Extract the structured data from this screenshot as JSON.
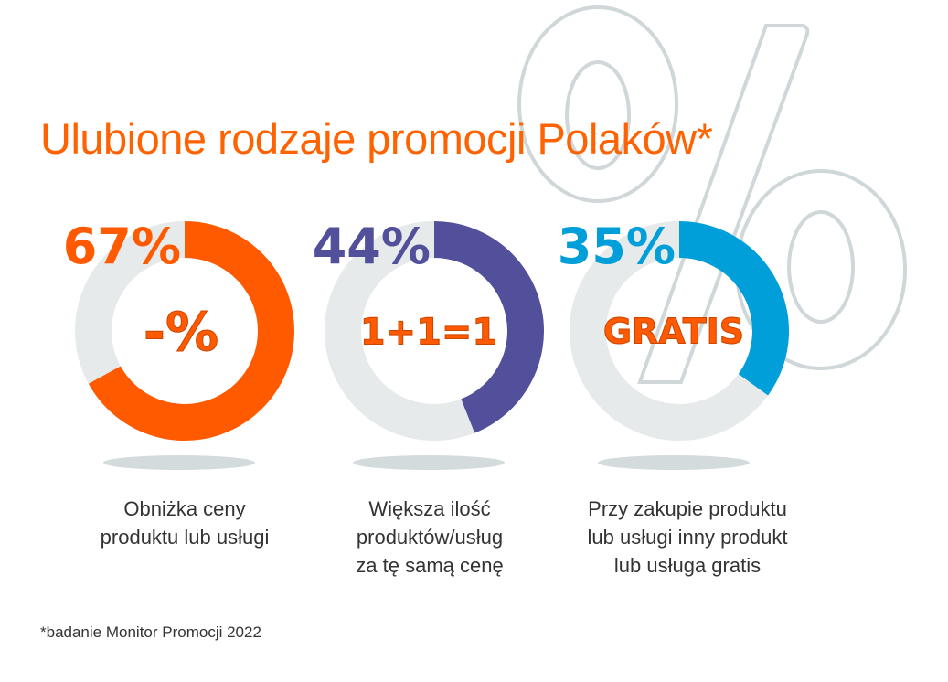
{
  "title": "Ulubione rodzaje promocji Polaków*",
  "footnote": "*badanie Monitor Promocji 2022",
  "colors": {
    "orange": "#ff5a00",
    "purple": "#52509a",
    "blue": "#009fda",
    "track": "#e6eaeb",
    "shadow": "#d4dbdc",
    "outline": "#cfd7d9"
  },
  "decoration": {
    "background_icon": "percent-outline-icon"
  },
  "chart_data": {
    "type": "donut",
    "title": "Ulubione rodzaje promocji Polaków*",
    "ylim": [
      0,
      100
    ],
    "items": [
      {
        "value": 67,
        "value_label": "67%",
        "center_text": "-%",
        "label": [
          "Obniżka ceny",
          "produktu lub usługi"
        ],
        "color": "#ff5a00"
      },
      {
        "value": 44,
        "value_label": "44%",
        "center_text": "1+1=1",
        "label": [
          "Większa ilość",
          "produktów/usług",
          "za tę samą cenę"
        ],
        "color": "#52509a"
      },
      {
        "value": 35,
        "value_label": "35%",
        "center_text": "GRATIS",
        "label": [
          "Przy zakupie produktu",
          "lub usługi inny produkt",
          "lub usługa gratis"
        ],
        "color": "#009fda"
      }
    ]
  }
}
